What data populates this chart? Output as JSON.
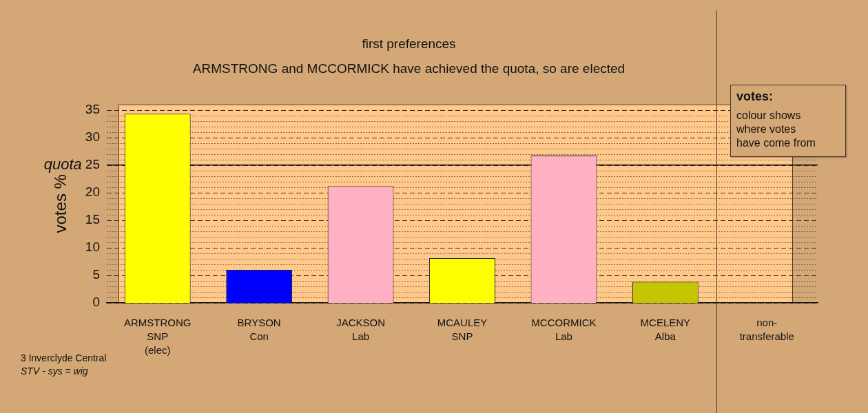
{
  "chart_data": {
    "type": "bar",
    "title": "first preferences",
    "subtitle": "ARMSTRONG and MCCORMICK have achieved the quota, so are elected",
    "ylabel": "votes %",
    "categories": [
      "ARMSTRONG\nSNP\n(elec)",
      "BRYSON\nCon",
      "JACKSON\nLab",
      "MCAULEY\nSNP",
      "MCCORMICK\nLab",
      "MCELENY\nAlba",
      "non-\ntransferable"
    ],
    "values": [
      34.3,
      6.0,
      21.2,
      8.1,
      26.7,
      3.8,
      0
    ],
    "colors": [
      "#ffff00",
      "#0000ff",
      "#ffb1c3",
      "#ffff00",
      "#ffb1c3",
      "#c5c400",
      null
    ],
    "ylim": [
      0,
      36
    ],
    "yticks": [
      0,
      {
        "value": 1,
        "label": null
      },
      {
        "value": 2,
        "label": null
      },
      {
        "value": 3,
        "label": null
      },
      {
        "value": 4,
        "label": null
      },
      5,
      {
        "value": 6,
        "label": null
      },
      {
        "value": 7,
        "label": null
      },
      {
        "value": 8,
        "label": null
      },
      {
        "value": 9,
        "label": null
      },
      10,
      {
        "value": 11,
        "label": null
      },
      {
        "value": 12,
        "label": null
      },
      {
        "value": 13,
        "label": null
      },
      {
        "value": 14,
        "label": null
      },
      15,
      {
        "value": 16,
        "label": null
      },
      {
        "value": 17,
        "label": null
      },
      {
        "value": 18,
        "label": null
      },
      {
        "value": 19,
        "label": null
      },
      20,
      {
        "value": 21,
        "label": null
      },
      {
        "value": 22,
        "label": null
      },
      {
        "value": 23,
        "label": null
      },
      {
        "value": 24,
        "label": null
      },
      25,
      {
        "value": 26,
        "label": null
      },
      {
        "value": 27,
        "label": null
      },
      {
        "value": 28,
        "label": null
      },
      {
        "value": 29,
        "label": null
      },
      30,
      {
        "value": 31,
        "label": null
      },
      {
        "value": 32,
        "label": null
      },
      {
        "value": 33,
        "label": null
      },
      {
        "value": 34,
        "label": null
      },
      35
    ],
    "grid": "y",
    "ref_lines": [
      {
        "axis": "y",
        "value": 25,
        "label": "quota",
        "line_style": "solid"
      },
      {
        "axis": "x",
        "value": "non-\ntransferable",
        "line_style": "solid"
      }
    ],
    "annotations": [
      "votes:",
      "colour shows\nwhere votes\nhave come from",
      "3 Inverclyde Central",
      "STV - sys = wig"
    ]
  }
}
